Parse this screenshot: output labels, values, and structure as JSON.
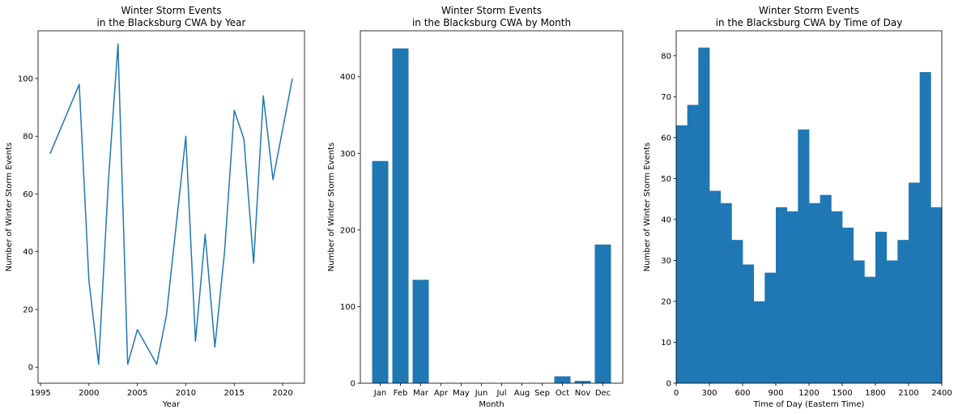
{
  "chart_data": [
    {
      "type": "line",
      "title_line1": "Winter Storm Events",
      "title_line2": "in the Blacksburg CWA by Year",
      "xlabel": "Year",
      "ylabel": "Number of Winter Storm Events",
      "xlim": [
        1994.75,
        2022.25
      ],
      "ylim": [
        -5.55,
        116.55
      ],
      "xticks": [
        1995,
        2000,
        2005,
        2010,
        2015,
        2020
      ],
      "yticks": [
        0,
        20,
        40,
        60,
        80,
        100
      ],
      "color": "#1f77b4",
      "x": [
        1996,
        1999,
        2000,
        2001,
        2002,
        2003,
        2004,
        2005,
        2007,
        2008,
        2010,
        2011,
        2012,
        2013,
        2014,
        2015,
        2016,
        2017,
        2018,
        2019,
        2021
      ],
      "y": [
        74,
        98,
        30,
        1,
        64,
        112,
        1,
        13,
        1,
        18,
        80,
        9,
        46,
        7,
        40,
        89,
        79,
        36,
        94,
        65,
        100
      ]
    },
    {
      "type": "bar",
      "title_line1": "Winter Storm Events",
      "title_line2": "in the Blacksburg CWA by Month",
      "xlabel": "Month",
      "ylabel": "Number of Winter Storm Events",
      "ylim": [
        0,
        460
      ],
      "yticks": [
        0,
        100,
        200,
        300,
        400
      ],
      "color": "#1f77b4",
      "categories": [
        "Jan",
        "Feb",
        "Mar",
        "Apr",
        "May",
        "Jun",
        "Jul",
        "Aug",
        "Sep",
        "Oct",
        "Nov",
        "Dec"
      ],
      "values": [
        290,
        437,
        135,
        0,
        0,
        0,
        0,
        0,
        0,
        9,
        3,
        181
      ]
    },
    {
      "type": "bar",
      "title_line1": "Winter Storm Events",
      "title_line2": "in the Blacksburg CWA by Time of Day",
      "xlabel": "Time of Day (Eastern Time)",
      "ylabel": "Number of Winter Storm Events",
      "xlim": [
        0,
        2400
      ],
      "ylim": [
        0,
        86.1
      ],
      "xticks": [
        0,
        300,
        600,
        900,
        1200,
        1500,
        1800,
        2100,
        2400
      ],
      "yticks": [
        0,
        10,
        20,
        30,
        40,
        50,
        60,
        70,
        80
      ],
      "color": "#1f77b4",
      "bin_width": 100,
      "bin_starts": [
        0,
        100,
        200,
        300,
        400,
        500,
        600,
        700,
        800,
        900,
        1000,
        1100,
        1200,
        1300,
        1400,
        1500,
        1600,
        1700,
        1800,
        1900,
        2000,
        2100,
        2200,
        2300
      ],
      "values": [
        63,
        68,
        82,
        47,
        44,
        35,
        29,
        20,
        27,
        43,
        42,
        62,
        44,
        46,
        42,
        38,
        30,
        26,
        37,
        30,
        35,
        49,
        76,
        43
      ]
    }
  ]
}
